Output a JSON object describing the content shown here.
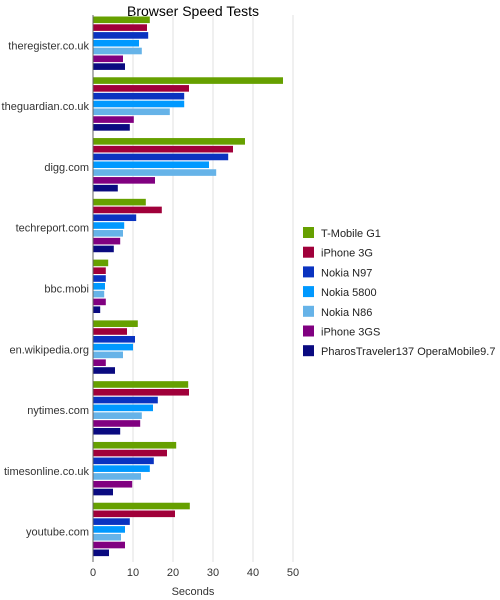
{
  "chart_data": {
    "type": "bar",
    "orientation": "horizontal",
    "title": "Browser Speed Tests",
    "xlabel": "Seconds",
    "ylabel": "",
    "xlim": [
      0,
      50
    ],
    "xticks": [
      0,
      10,
      20,
      30,
      40,
      50
    ],
    "grid": true,
    "legend_position": "right",
    "categories": [
      "theregister.co.uk",
      "theguardian.co.uk",
      "digg.com",
      "techreport.com",
      "bbc.mobi",
      "en.wikipedia.org",
      "nytimes.com",
      "timesonline.co.uk",
      "youtube.com"
    ],
    "series": [
      {
        "name": "T-Mobile G1",
        "color": "#66a000",
        "values": [
          14.2,
          47.5,
          38.0,
          13.2,
          3.8,
          11.2,
          23.8,
          20.8,
          24.2
        ]
      },
      {
        "name": "iPhone 3G",
        "color": "#a0003a",
        "values": [
          13.5,
          24.0,
          35.0,
          17.2,
          3.2,
          8.5,
          24.0,
          18.5,
          20.5
        ]
      },
      {
        "name": "Nokia N97",
        "color": "#0a33c0",
        "values": [
          13.8,
          22.8,
          33.8,
          10.8,
          3.2,
          10.5,
          16.2,
          15.2,
          9.2
        ]
      },
      {
        "name": "Nokia 5800",
        "color": "#0099ff",
        "values": [
          11.5,
          22.8,
          29.0,
          7.8,
          3.0,
          10.0,
          15.0,
          14.2,
          8.0
        ]
      },
      {
        "name": "Nokia N86",
        "color": "#66b3e8",
        "values": [
          12.2,
          19.2,
          30.8,
          7.5,
          2.8,
          7.5,
          12.2,
          12.0,
          7.0
        ]
      },
      {
        "name": "iPhone 3GS",
        "color": "#800080",
        "values": [
          7.5,
          10.2,
          15.5,
          6.8,
          3.2,
          3.2,
          11.8,
          9.8,
          8.0
        ]
      },
      {
        "name": "PharosTraveler137 OperaMobile9.7",
        "color": "#0a0a80",
        "values": [
          8.0,
          9.2,
          6.2,
          5.2,
          1.8,
          5.5,
          6.8,
          5.0,
          4.0
        ]
      }
    ]
  }
}
